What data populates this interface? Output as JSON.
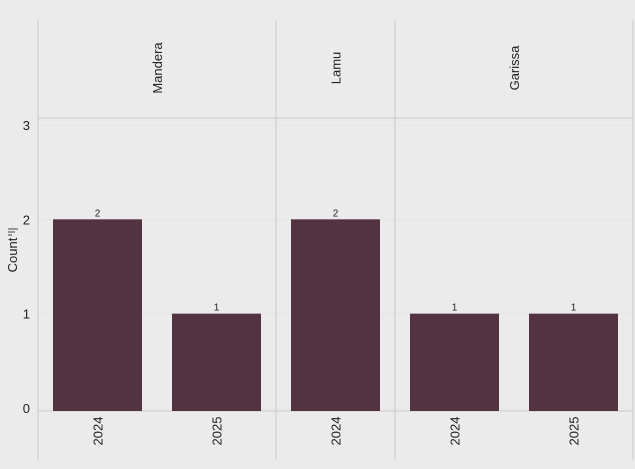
{
  "chart_data": {
    "type": "bar",
    "facet_by": "County",
    "panels": [
      {
        "label": "Mandera",
        "categories": [
          "2024",
          "2025"
        ],
        "values": [
          2,
          1
        ]
      },
      {
        "label": "Lamu",
        "categories": [
          "2024"
        ],
        "values": [
          2
        ]
      },
      {
        "label": "Garissa",
        "categories": [
          "2024",
          "2025"
        ],
        "values": [
          1,
          1
        ]
      }
    ],
    "ylabel": "Count",
    "ylim": [
      0,
      3
    ],
    "yticks": [
      "0",
      "1",
      "2",
      "3"
    ],
    "data_labels": true,
    "grid": true,
    "legend": "none",
    "colors": {
      "bar": "#533341",
      "background": "#ebebeb",
      "divider": "#c8c8c8"
    }
  }
}
